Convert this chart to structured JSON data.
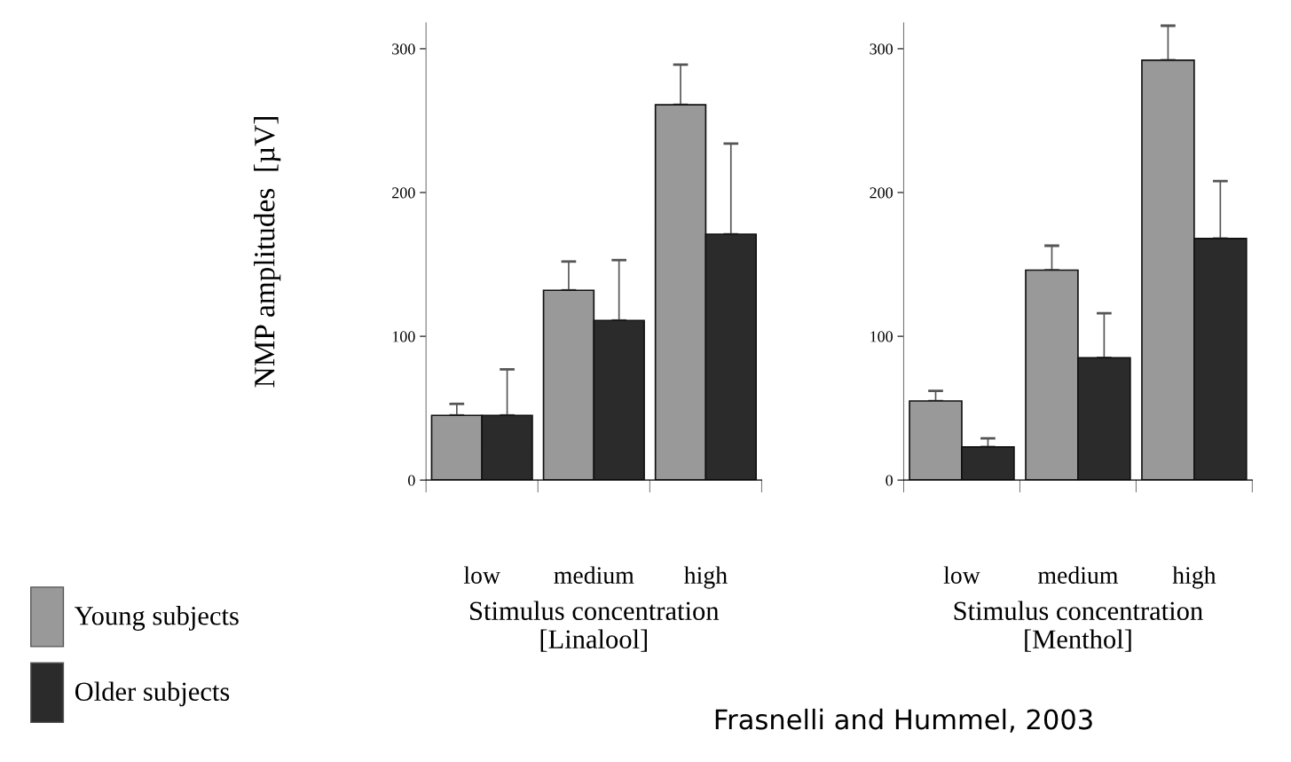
{
  "chart_data": [
    {
      "type": "bar",
      "xlabel": "Stimulus concentration\n[Linalool]",
      "ylabel": "NMP amplitudes  [µV]",
      "categories": [
        "low",
        "medium",
        "high"
      ],
      "ylim": [
        0,
        318
      ],
      "yticks": [
        0,
        100,
        200,
        300
      ],
      "legend": "bottom left",
      "grid": false,
      "series": [
        {
          "name": "Young subjects",
          "color": "#999999",
          "values": [
            45,
            132,
            261
          ],
          "errors": [
            [
              45,
              53
            ],
            [
              132,
              152
            ],
            [
              261,
              289
            ]
          ]
        },
        {
          "name": "Older subjects",
          "color": "#2b2b2b",
          "values": [
            45,
            111,
            171
          ],
          "errors": [
            [
              45,
              77
            ],
            [
              111,
              153
            ],
            [
              171,
              234
            ]
          ]
        }
      ]
    },
    {
      "type": "bar",
      "xlabel": "Stimulus concentration\n[Menthol]",
      "categories": [
        "low",
        "medium",
        "high"
      ],
      "ylim": [
        0,
        318
      ],
      "yticks": [
        0,
        100,
        200,
        300
      ],
      "grid": false,
      "annotations": [
        "Frasnelli and Hummel, 2003"
      ],
      "series": [
        {
          "color": "#999999",
          "values": [
            55,
            146,
            292
          ],
          "errors": [
            [
              55,
              62
            ],
            [
              146,
              163
            ],
            [
              292,
              316
            ]
          ]
        },
        {
          "color": "#2b2b2b",
          "values": [
            23,
            85,
            168
          ],
          "errors": [
            [
              23,
              29
            ],
            [
              85,
              116
            ],
            [
              168,
              208
            ]
          ]
        }
      ]
    }
  ]
}
